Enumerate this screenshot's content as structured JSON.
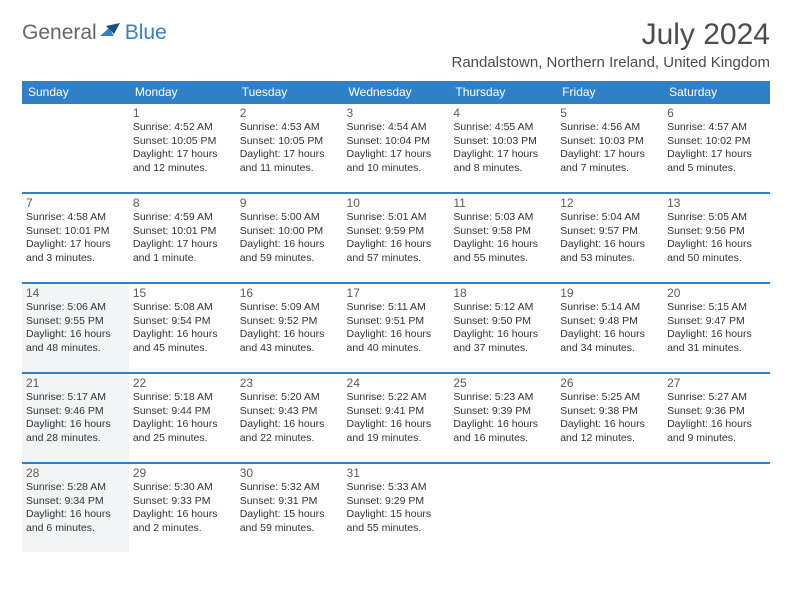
{
  "brand": {
    "part1": "General",
    "part2": "Blue"
  },
  "title": "July 2024",
  "location": "Randalstown, Northern Ireland, United Kingdom",
  "colors": {
    "accent": "#2f80c6",
    "shade": "#f2f4f6",
    "text": "#333"
  },
  "weekdays": [
    "Sunday",
    "Monday",
    "Tuesday",
    "Wednesday",
    "Thursday",
    "Friday",
    "Saturday"
  ],
  "weeks": [
    [
      {
        "n": "",
        "t": ""
      },
      {
        "n": "1",
        "t": "Sunrise: 4:52 AM\nSunset: 10:05 PM\nDaylight: 17 hours\nand 12 minutes."
      },
      {
        "n": "2",
        "t": "Sunrise: 4:53 AM\nSunset: 10:05 PM\nDaylight: 17 hours\nand 11 minutes."
      },
      {
        "n": "3",
        "t": "Sunrise: 4:54 AM\nSunset: 10:04 PM\nDaylight: 17 hours\nand 10 minutes."
      },
      {
        "n": "4",
        "t": "Sunrise: 4:55 AM\nSunset: 10:03 PM\nDaylight: 17 hours\nand 8 minutes."
      },
      {
        "n": "5",
        "t": "Sunrise: 4:56 AM\nSunset: 10:03 PM\nDaylight: 17 hours\nand 7 minutes."
      },
      {
        "n": "6",
        "t": "Sunrise: 4:57 AM\nSunset: 10:02 PM\nDaylight: 17 hours\nand 5 minutes."
      }
    ],
    [
      {
        "n": "7",
        "t": "Sunrise: 4:58 AM\nSunset: 10:01 PM\nDaylight: 17 hours\nand 3 minutes."
      },
      {
        "n": "8",
        "t": "Sunrise: 4:59 AM\nSunset: 10:01 PM\nDaylight: 17 hours\nand 1 minute."
      },
      {
        "n": "9",
        "t": "Sunrise: 5:00 AM\nSunset: 10:00 PM\nDaylight: 16 hours\nand 59 minutes."
      },
      {
        "n": "10",
        "t": "Sunrise: 5:01 AM\nSunset: 9:59 PM\nDaylight: 16 hours\nand 57 minutes."
      },
      {
        "n": "11",
        "t": "Sunrise: 5:03 AM\nSunset: 9:58 PM\nDaylight: 16 hours\nand 55 minutes."
      },
      {
        "n": "12",
        "t": "Sunrise: 5:04 AM\nSunset: 9:57 PM\nDaylight: 16 hours\nand 53 minutes."
      },
      {
        "n": "13",
        "t": "Sunrise: 5:05 AM\nSunset: 9:56 PM\nDaylight: 16 hours\nand 50 minutes."
      }
    ],
    [
      {
        "n": "14",
        "t": "Sunrise: 5:06 AM\nSunset: 9:55 PM\nDaylight: 16 hours\nand 48 minutes.",
        "s": true
      },
      {
        "n": "15",
        "t": "Sunrise: 5:08 AM\nSunset: 9:54 PM\nDaylight: 16 hours\nand 45 minutes."
      },
      {
        "n": "16",
        "t": "Sunrise: 5:09 AM\nSunset: 9:52 PM\nDaylight: 16 hours\nand 43 minutes."
      },
      {
        "n": "17",
        "t": "Sunrise: 5:11 AM\nSunset: 9:51 PM\nDaylight: 16 hours\nand 40 minutes."
      },
      {
        "n": "18",
        "t": "Sunrise: 5:12 AM\nSunset: 9:50 PM\nDaylight: 16 hours\nand 37 minutes."
      },
      {
        "n": "19",
        "t": "Sunrise: 5:14 AM\nSunset: 9:48 PM\nDaylight: 16 hours\nand 34 minutes."
      },
      {
        "n": "20",
        "t": "Sunrise: 5:15 AM\nSunset: 9:47 PM\nDaylight: 16 hours\nand 31 minutes."
      }
    ],
    [
      {
        "n": "21",
        "t": "Sunrise: 5:17 AM\nSunset: 9:46 PM\nDaylight: 16 hours\nand 28 minutes.",
        "s": true
      },
      {
        "n": "22",
        "t": "Sunrise: 5:18 AM\nSunset: 9:44 PM\nDaylight: 16 hours\nand 25 minutes."
      },
      {
        "n": "23",
        "t": "Sunrise: 5:20 AM\nSunset: 9:43 PM\nDaylight: 16 hours\nand 22 minutes."
      },
      {
        "n": "24",
        "t": "Sunrise: 5:22 AM\nSunset: 9:41 PM\nDaylight: 16 hours\nand 19 minutes."
      },
      {
        "n": "25",
        "t": "Sunrise: 5:23 AM\nSunset: 9:39 PM\nDaylight: 16 hours\nand 16 minutes."
      },
      {
        "n": "26",
        "t": "Sunrise: 5:25 AM\nSunset: 9:38 PM\nDaylight: 16 hours\nand 12 minutes."
      },
      {
        "n": "27",
        "t": "Sunrise: 5:27 AM\nSunset: 9:36 PM\nDaylight: 16 hours\nand 9 minutes."
      }
    ],
    [
      {
        "n": "28",
        "t": "Sunrise: 5:28 AM\nSunset: 9:34 PM\nDaylight: 16 hours\nand 6 minutes.",
        "s": true
      },
      {
        "n": "29",
        "t": "Sunrise: 5:30 AM\nSunset: 9:33 PM\nDaylight: 16 hours\nand 2 minutes."
      },
      {
        "n": "30",
        "t": "Sunrise: 5:32 AM\nSunset: 9:31 PM\nDaylight: 15 hours\nand 59 minutes."
      },
      {
        "n": "31",
        "t": "Sunrise: 5:33 AM\nSunset: 9:29 PM\nDaylight: 15 hours\nand 55 minutes."
      },
      {
        "n": "",
        "t": ""
      },
      {
        "n": "",
        "t": ""
      },
      {
        "n": "",
        "t": ""
      }
    ]
  ]
}
